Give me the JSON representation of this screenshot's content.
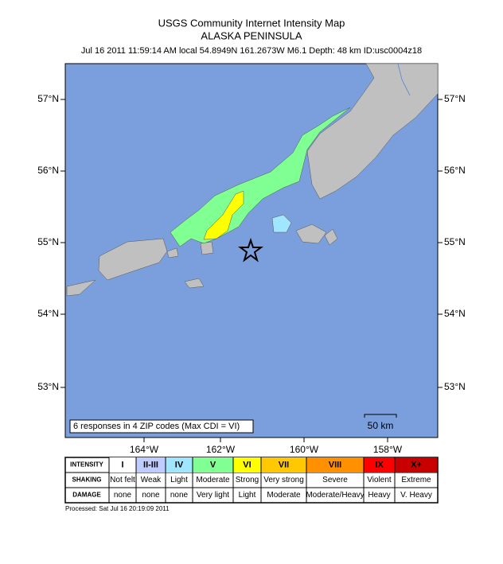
{
  "header": {
    "title": "USGS Community Internet Intensity Map",
    "subtitle": "ALASKA PENINSULA",
    "info": "Jul 16 2011 11:59:14 AM local 54.8949N 161.2673W M6.1 Depth: 48 km ID:usc0004z18"
  },
  "map": {
    "lat_labels": [
      "57°N",
      "56°N",
      "55°N",
      "54°N",
      "53°N"
    ],
    "lon_labels": [
      "164°W",
      "162°W",
      "160°W",
      "158°W"
    ],
    "responses": "6 responses in 4 ZIP codes (Max CDI = VI)",
    "scale": "50 km"
  },
  "legend": {
    "row_headers": [
      "INTENSITY",
      "SHAKING",
      "DAMAGE"
    ],
    "intensity": [
      "I",
      "II-III",
      "IV",
      "V",
      "VI",
      "VII",
      "VIII",
      "IX",
      "X+"
    ],
    "shaking": [
      "Not felt",
      "Weak",
      "Light",
      "Moderate",
      "Strong",
      "Very strong",
      "Severe",
      "Violent",
      "Extreme"
    ],
    "damage": [
      "none",
      "none",
      "none",
      "Very light",
      "Light",
      "Moderate",
      "Moderate/Heavy",
      "Heavy",
      "V. Heavy"
    ]
  },
  "footer": "Processed: Sat Jul 16 20:19:09 2011"
}
